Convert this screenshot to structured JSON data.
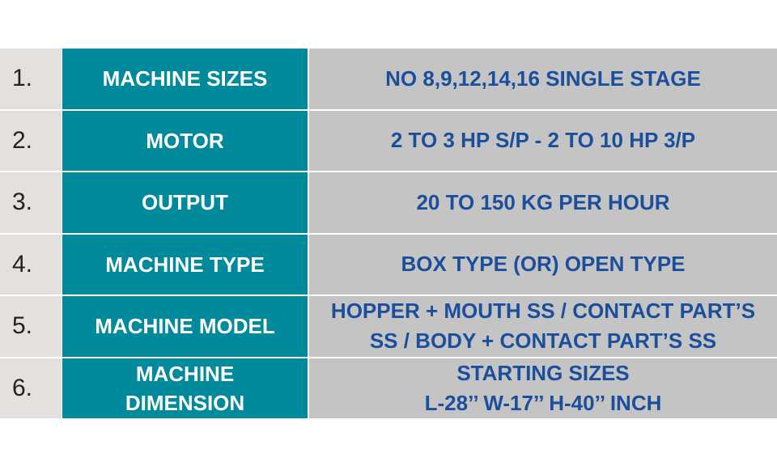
{
  "colors": {
    "number_bg": "#e4e1dc",
    "label_bg": "#008a9b",
    "value_bg": "#c4c4c4",
    "value_text": "#1b4f9c"
  },
  "rows": [
    {
      "number": "1.",
      "label": "MACHINE SIZES",
      "value": "NO 8,9,12,14,16 SINGLE STAGE"
    },
    {
      "number": "2.",
      "label": "MOTOR",
      "value": "2 TO 3 HP S/P - 2 TO 10 HP 3/P"
    },
    {
      "number": "3.",
      "label": "OUTPUT",
      "value": "20 TO 150 KG PER HOUR"
    },
    {
      "number": "4.",
      "label": "MACHINE TYPE",
      "value": "BOX TYPE (OR) OPEN TYPE"
    },
    {
      "number": "5.",
      "label": "MACHINE MODEL",
      "value_lines": [
        "HOPPER + MOUTH SS / CONTACT PART’S",
        "SS / BODY + CONTACT PART’S SS"
      ]
    },
    {
      "number": "6.",
      "label_lines": [
        "MACHINE",
        "DIMENSION"
      ],
      "value_lines": [
        "STARTING SIZES",
        "L-28’’ W-17’’ H-40’’ INCH"
      ]
    }
  ]
}
